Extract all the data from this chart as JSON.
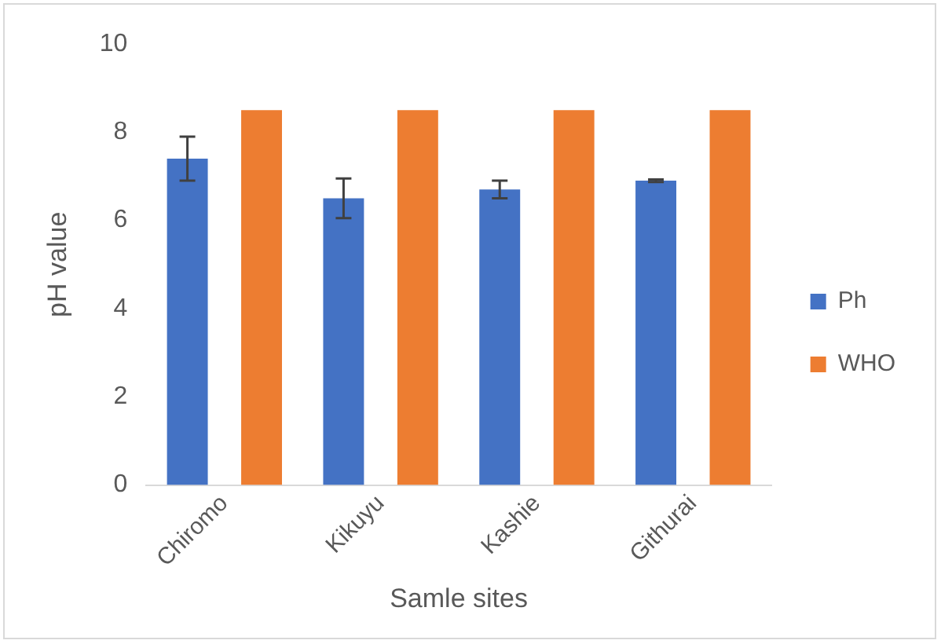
{
  "chart_data": {
    "type": "bar",
    "xlabel": "Samle sites",
    "ylabel": "pH value",
    "categories": [
      "Chiromo",
      "Kikuyu",
      "Kashie",
      "Githurai"
    ],
    "series": [
      {
        "name": "Ph",
        "color": "#4472c4",
        "values": [
          7.4,
          6.5,
          6.7,
          6.9
        ],
        "errors": [
          0.5,
          0.45,
          0.2,
          0.03
        ]
      },
      {
        "name": "WHO",
        "color": "#ed7d31",
        "values": [
          8.5,
          8.5,
          8.5,
          8.5
        ]
      }
    ],
    "ylim": [
      0,
      10
    ],
    "yticks": [
      0,
      2,
      4,
      6,
      8,
      10
    ],
    "grid": false,
    "legend": "right"
  }
}
